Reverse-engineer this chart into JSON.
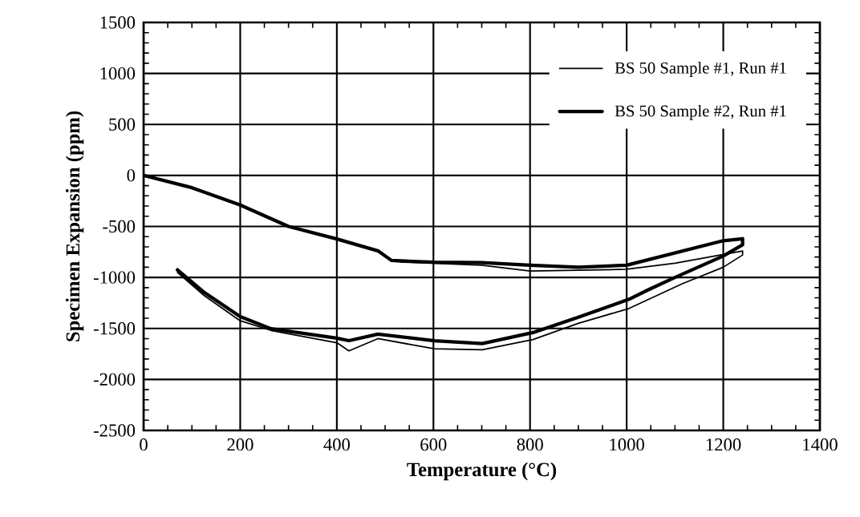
{
  "chart_data": {
    "type": "line",
    "xlabel": "Temperature (°C)",
    "ylabel": "Specimen Expansion (ppm)",
    "xlim": [
      0,
      1400
    ],
    "xticks": [
      0,
      200,
      400,
      600,
      800,
      1000,
      1200,
      1400
    ],
    "ylim": [
      -2500,
      1500
    ],
    "yticks": [
      -2500,
      -2000,
      -1500,
      -1000,
      -500,
      0,
      500,
      1000,
      1500
    ],
    "grid": true,
    "legend": "top right",
    "line_style": "solid",
    "marker": "none",
    "series": [
      {
        "name": "BS 50 Sample #1, Run #1",
        "color": "#000000",
        "x": [
          0,
          100,
          200,
          300,
          400,
          486,
          513,
          540,
          700,
          800,
          1000,
          1100,
          1240,
          1240,
          1200,
          1116,
          1005,
          900,
          806,
          701,
          602,
          485,
          425,
          400,
          264,
          200,
          126,
          70
        ],
        "values": [
          0,
          -120,
          -290,
          -500,
          -623,
          -741,
          -833,
          -850,
          -880,
          -938,
          -920,
          -860,
          -740,
          -780,
          -900,
          -1060,
          -1304,
          -1450,
          -1609,
          -1710,
          -1700,
          -1600,
          -1720,
          -1640,
          -1520,
          -1425,
          -1180,
          -950
        ]
      },
      {
        "name": "BS 50 Sample #2, Run #1",
        "color": "#000000",
        "x": [
          0,
          100,
          200,
          300,
          400,
          486,
          513,
          540,
          600,
          700,
          800,
          900,
          1000,
          1200,
          1240,
          1240,
          1200,
          1100,
          1044,
          1005,
          900,
          806,
          701,
          602,
          485,
          425,
          400,
          264,
          200,
          126,
          70
        ],
        "values": [
          0,
          -120,
          -290,
          -500,
          -623,
          -741,
          -833,
          -840,
          -850,
          -854,
          -880,
          -900,
          -880,
          -640,
          -620,
          -680,
          -790,
          -1000,
          -1123,
          -1214,
          -1390,
          -1541,
          -1648,
          -1621,
          -1556,
          -1620,
          -1596,
          -1503,
          -1385,
          -1149,
          -925
        ]
      }
    ]
  }
}
